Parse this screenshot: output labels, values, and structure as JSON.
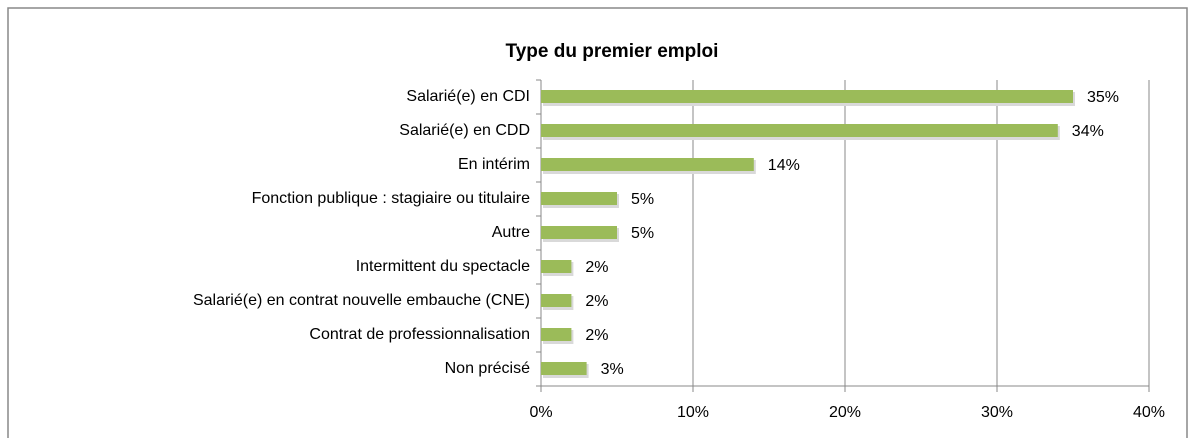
{
  "chart_data": {
    "type": "bar",
    "orientation": "horizontal",
    "title": "Type du premier emploi",
    "categories": [
      "Salarié(e) en CDI",
      "Salarié(e) en CDD",
      "En intérim",
      "Fonction publique : stagiaire ou titulaire",
      "Autre",
      "Intermittent du spectacle",
      "Salarié(e) en contrat nouvelle embauche (CNE)",
      "Contrat de professionnalisation",
      "Non précisé"
    ],
    "values": [
      35,
      34,
      14,
      5,
      5,
      2,
      2,
      2,
      3
    ],
    "value_labels": [
      "35%",
      "34%",
      "14%",
      "5%",
      "5%",
      "2%",
      "2%",
      "2%",
      "3%"
    ],
    "color": "#9bbb59",
    "xlim": [
      0,
      40
    ],
    "xticks": [
      {
        "value": 0,
        "label": "0%"
      },
      {
        "value": 10,
        "label": "10%"
      },
      {
        "value": 20,
        "label": "20%"
      },
      {
        "value": 30,
        "label": "30%"
      },
      {
        "value": 40,
        "label": "40%"
      }
    ],
    "grid": true
  }
}
